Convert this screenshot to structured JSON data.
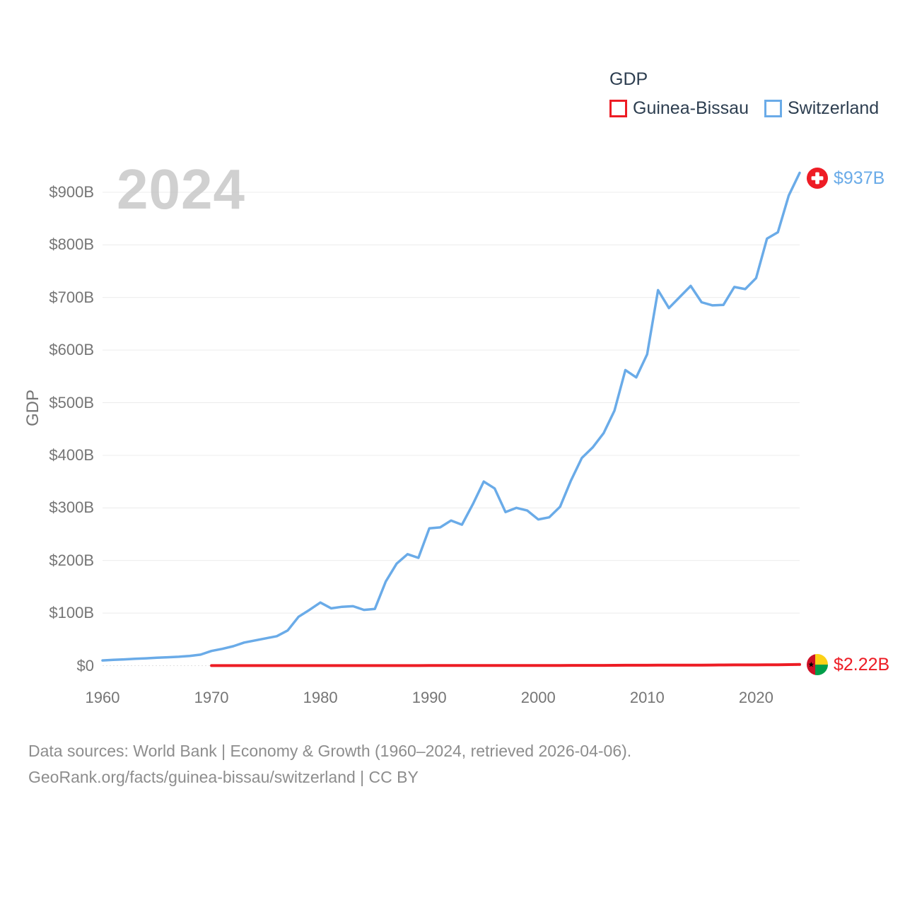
{
  "page": {
    "background": "#ffffff"
  },
  "legend": {
    "title": "GDP",
    "items": [
      {
        "label": "Guinea-Bissau",
        "color": "#ed1c24"
      },
      {
        "label": "Switzerland",
        "color": "#6aabe8"
      }
    ]
  },
  "watermark": "2024",
  "annotations": {
    "switzerland": {
      "text": "$937B",
      "color": "#6aabe8"
    },
    "guinea_bissau": {
      "text": "$2.22B",
      "color": "#ed1c24"
    }
  },
  "footer": {
    "line1": "Data sources: World Bank | Economy & Growth (1960–2024, retrieved 2026-04-06).",
    "line2": "GeoRank.org/facts/guinea-bissau/switzerland | CC BY"
  },
  "chart_data": {
    "type": "line",
    "title": "GDP",
    "ylabel": "GDP",
    "unit": "billion USD",
    "xlim": [
      1960,
      2024
    ],
    "ylim": [
      0,
      900
    ],
    "grid": true,
    "legend_position": "top-right",
    "y_ticks": [
      {
        "value": 0,
        "label": "$0"
      },
      {
        "value": 100,
        "label": "$100B"
      },
      {
        "value": 200,
        "label": "$200B"
      },
      {
        "value": 300,
        "label": "$300B"
      },
      {
        "value": 400,
        "label": "$400B"
      },
      {
        "value": 500,
        "label": "$500B"
      },
      {
        "value": 600,
        "label": "$600B"
      },
      {
        "value": 700,
        "label": "$700B"
      },
      {
        "value": 800,
        "label": "$800B"
      },
      {
        "value": 900,
        "label": "$900B"
      }
    ],
    "x_ticks": [
      {
        "value": 1960,
        "label": "1960"
      },
      {
        "value": 1970,
        "label": "1970"
      },
      {
        "value": 1980,
        "label": "1980"
      },
      {
        "value": 1990,
        "label": "1990"
      },
      {
        "value": 2000,
        "label": "2000"
      },
      {
        "value": 2010,
        "label": "2010"
      },
      {
        "value": 2020,
        "label": "2020"
      }
    ],
    "series": [
      {
        "name": "Guinea-Bissau",
        "color": "#ed1c24",
        "stroke_width": 4,
        "start_year": 1970,
        "end_year": 2024,
        "end_value_label": "$2.22B",
        "values": [
          0.08,
          0.08,
          0.09,
          0.1,
          0.11,
          0.12,
          0.13,
          0.14,
          0.13,
          0.13,
          0.11,
          0.14,
          0.15,
          0.17,
          0.15,
          0.17,
          0.15,
          0.16,
          0.16,
          0.17,
          0.24,
          0.25,
          0.22,
          0.24,
          0.24,
          0.25,
          0.27,
          0.27,
          0.21,
          0.22,
          0.37,
          0.39,
          0.42,
          0.48,
          0.53,
          0.59,
          0.59,
          0.69,
          0.87,
          0.83,
          0.85,
          1.05,
          0.99,
          1.05,
          1.06,
          1.05,
          1.16,
          1.35,
          1.46,
          1.44,
          1.43,
          1.64,
          1.63,
          1.97,
          2.22
        ]
      },
      {
        "name": "Switzerland",
        "color": "#6aabe8",
        "stroke_width": 3.5,
        "start_year": 1960,
        "end_year": 2024,
        "end_value_label": "$937B",
        "values": [
          10,
          11,
          12,
          13,
          14,
          15,
          16,
          17,
          18.5,
          21,
          28,
          32,
          37,
          44,
          48,
          52,
          56,
          67,
          93,
          106,
          120,
          109,
          112,
          113,
          106,
          108,
          160,
          194,
          212,
          205,
          261,
          263,
          276,
          268,
          307,
          350,
          337,
          292,
          300,
          295,
          278,
          282,
          302,
          352,
          395,
          415,
          442,
          485,
          562,
          548,
          592,
          714,
          680,
          701,
          722,
          691,
          685,
          686,
          720,
          716,
          737,
          812,
          824,
          894,
          937
        ]
      }
    ]
  }
}
